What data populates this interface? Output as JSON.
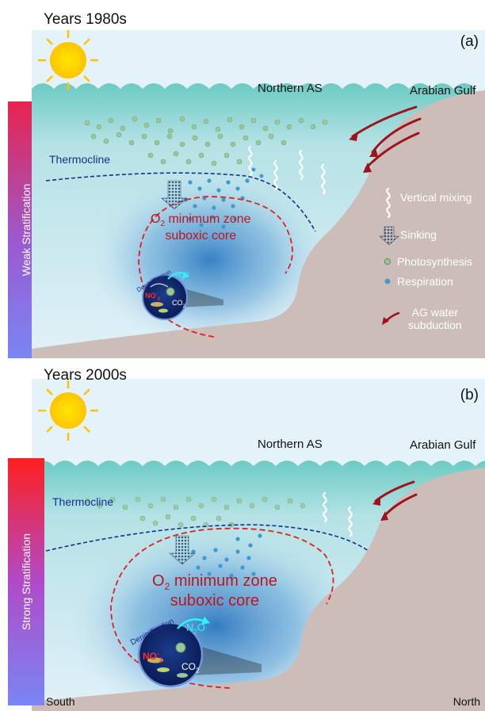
{
  "panel_a": {
    "title": "Years 1980s",
    "tag": "(a)",
    "sidebar": "Weak Stratification",
    "northern_as": "Northern AS",
    "gulf": "Arabian Gulf",
    "thermocline": "Thermocline",
    "omz_line1_tail": "minimum zone",
    "omz_line2": "suboxic core",
    "denitrification": "Denitrification",
    "no3": "NO",
    "n2o": "N",
    "co2": "CO",
    "legend": {
      "vertical_mixing": "Vertical mixing",
      "sinking": "Sinking",
      "photosynthesis": "Photosynthesis",
      "respiration": "Respiration",
      "subduction_1": "AG water",
      "subduction_2": "subduction"
    }
  },
  "panel_b": {
    "title": "Years 2000s",
    "tag": "(b)",
    "sidebar": "Strong Stratification",
    "northern_as": "Northern AS",
    "gulf": "Arabian Gulf",
    "thermocline": "Thermocline",
    "omz_line1_tail": "minimum zone",
    "omz_line2": "suboxic core",
    "denitrification": "Denitrification",
    "no3": "NO",
    "n2o": "N",
    "co2": "CO",
    "south": "South",
    "north": "North"
  },
  "colors": {
    "sky": "#e4f2fa",
    "surface_water": "#6ccbc3",
    "deep_water": "#d8eef6",
    "omz_blue": "#2f7cc3",
    "seafloor": "#cdbdb8",
    "oxycline_red": "#e0201f",
    "thermocline_blue": "#1a2e8c",
    "subduction_arrow": "#a0131a",
    "sidebar_weak_top": "#e8234f",
    "sidebar_weak_bottom": "#7a86f4",
    "sidebar_strong_top": "#ff1f1f",
    "sidebar_strong_bottom": "#7a86f4"
  }
}
